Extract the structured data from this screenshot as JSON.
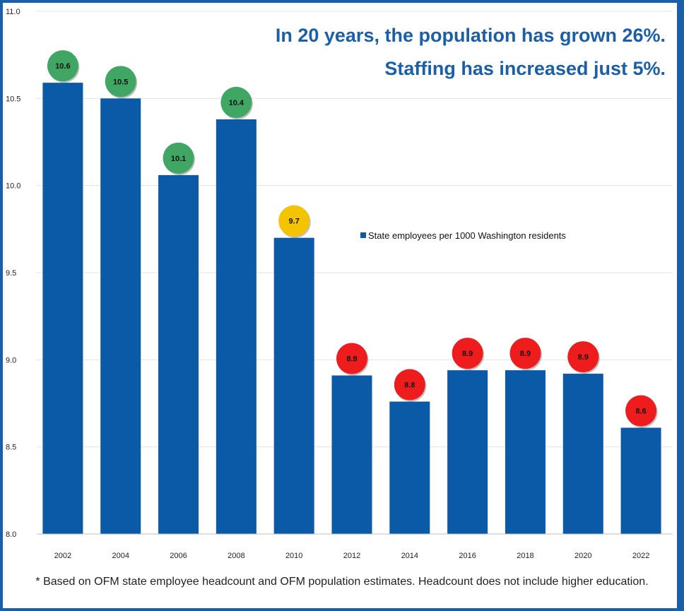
{
  "chart_data": {
    "type": "bar",
    "categories": [
      "2002",
      "2004",
      "2006",
      "2008",
      "2010",
      "2012",
      "2014",
      "2016",
      "2018",
      "2020",
      "2022"
    ],
    "series": [
      {
        "name": "State employees per 1000 Washington residents",
        "values": [
          10.59,
          10.5,
          10.06,
          10.38,
          9.7,
          8.91,
          8.76,
          8.94,
          8.94,
          8.92,
          8.61
        ],
        "color": "#0a5aa8"
      }
    ],
    "data_labels": [
      "10.6",
      "10.5",
      "10.1",
      "10.4",
      "9.7",
      "8.9",
      "8.8",
      "8.9",
      "8.9",
      "8.9",
      "8.6"
    ],
    "label_colors": [
      "#3fa663",
      "#3fa663",
      "#3fa663",
      "#3fa663",
      "#f5c400",
      "#ee1c1c",
      "#ee1c1c",
      "#ee1c1c",
      "#ee1c1c",
      "#ee1c1c",
      "#ee1c1c"
    ],
    "ylim": [
      8.0,
      11.0
    ],
    "yticks": [
      "8.0",
      "8.5",
      "9.0",
      "9.5",
      "10.0",
      "10.5",
      "11.0"
    ],
    "grid": true,
    "legend": "center-right",
    "headline": [
      "In 20 years, the population has grown 26%.",
      "Staffing has increased just 5%."
    ]
  },
  "footnote": "* Based on OFM state employee headcount and OFM population estimates. Headcount does not include higher education."
}
